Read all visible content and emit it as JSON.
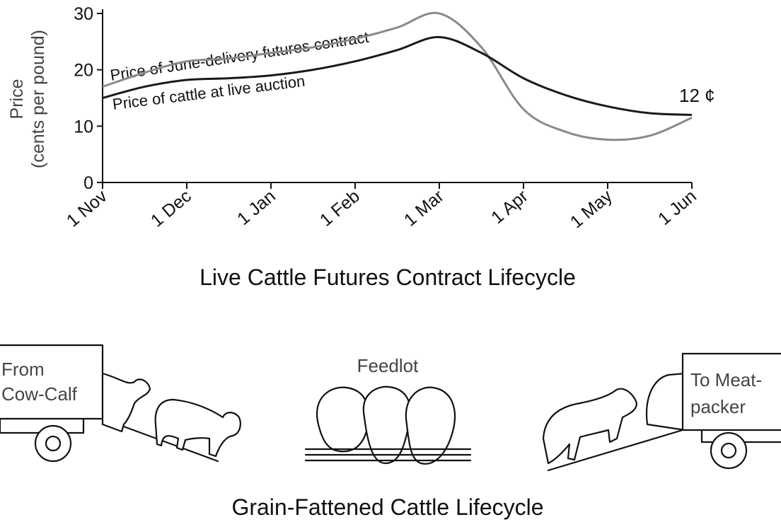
{
  "chart_data": {
    "type": "line",
    "title": "Live Cattle Futures Contract Lifecycle",
    "ylabel": [
      "Price",
      "(cents per pound)"
    ],
    "categories": [
      "1 Nov",
      null,
      "1 Dec",
      null,
      "1 Jan",
      null,
      "1 Feb",
      null,
      "1 Mar",
      null,
      "1 Apr",
      null,
      "1 May",
      null,
      "1 Jun"
    ],
    "series": [
      {
        "name": "Price of June-delivery futures contract",
        "color": "#8a8a8a",
        "values": [
          17,
          19.5,
          21.5,
          22,
          23,
          24,
          25.5,
          27.5,
          30,
          24,
          13,
          9,
          7.6,
          8.3,
          11.5
        ]
      },
      {
        "name": "Price of cattle at live auction",
        "color": "#1a1a1a",
        "values": [
          15,
          17,
          18.2,
          18.5,
          19,
          20,
          21.5,
          23.5,
          25.8,
          23,
          18.5,
          15.5,
          13.5,
          12.3,
          12
        ]
      }
    ],
    "annotations": [
      "12 ¢"
    ],
    "ylim": [
      0,
      30
    ],
    "yticks": [
      0,
      10,
      20,
      30
    ],
    "grid": false
  },
  "illustration": {
    "title": "Grain-Fattened Cattle Lifecycle",
    "left_truck": [
      "From",
      "Cow-Calf"
    ],
    "middle": "Feedlot",
    "right_truck": [
      "To Meat-",
      "packer"
    ]
  }
}
